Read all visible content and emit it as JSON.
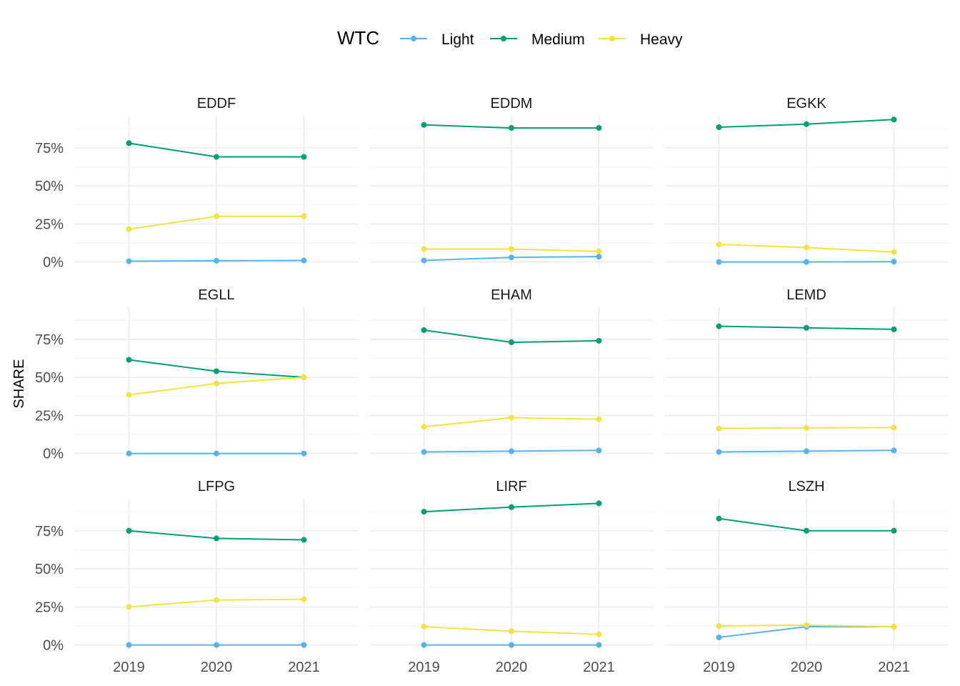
{
  "chart_data": {
    "type": "line",
    "layout": "facet-grid-3x3",
    "ylabel": "SHARE",
    "xlabel": "",
    "x": [
      "2019",
      "2020",
      "2021"
    ],
    "y_ticks": [
      "0%",
      "25%",
      "50%",
      "75%"
    ],
    "y_tick_values": [
      0,
      0.25,
      0.5,
      0.75
    ],
    "ylim": [
      -0.03,
      0.96
    ],
    "grid": true,
    "legend": {
      "title": "WTC",
      "placement": "top",
      "entries": [
        "Light",
        "Medium",
        "Heavy"
      ]
    },
    "colors": {
      "Light": "#56B4E9",
      "Medium": "#009E73",
      "Heavy": "#F0E442"
    },
    "panels": [
      {
        "title": "EDDF",
        "series": [
          {
            "name": "Light",
            "values": [
              0.005,
              0.008,
              0.01
            ]
          },
          {
            "name": "Medium",
            "values": [
              0.78,
              0.69,
              0.69
            ]
          },
          {
            "name": "Heavy",
            "values": [
              0.215,
              0.3,
              0.3
            ]
          }
        ]
      },
      {
        "title": "EDDM",
        "series": [
          {
            "name": "Light",
            "values": [
              0.01,
              0.03,
              0.035
            ]
          },
          {
            "name": "Medium",
            "values": [
              0.9,
              0.88,
              0.88
            ]
          },
          {
            "name": "Heavy",
            "values": [
              0.085,
              0.085,
              0.07
            ]
          }
        ]
      },
      {
        "title": "EGKK",
        "series": [
          {
            "name": "Light",
            "values": [
              0.0,
              0.0,
              0.002
            ]
          },
          {
            "name": "Medium",
            "values": [
              0.885,
              0.905,
              0.935
            ]
          },
          {
            "name": "Heavy",
            "values": [
              0.115,
              0.095,
              0.065
            ]
          }
        ]
      },
      {
        "title": "EGLL",
        "series": [
          {
            "name": "Light",
            "values": [
              0.0,
              0.0,
              0.0
            ]
          },
          {
            "name": "Medium",
            "values": [
              0.615,
              0.54,
              0.5
            ]
          },
          {
            "name": "Heavy",
            "values": [
              0.385,
              0.46,
              0.5
            ]
          }
        ]
      },
      {
        "title": "EHAM",
        "series": [
          {
            "name": "Light",
            "values": [
              0.01,
              0.015,
              0.02
            ]
          },
          {
            "name": "Medium",
            "values": [
              0.81,
              0.73,
              0.74
            ]
          },
          {
            "name": "Heavy",
            "values": [
              0.175,
              0.235,
              0.225
            ]
          }
        ]
      },
      {
        "title": "LEMD",
        "series": [
          {
            "name": "Light",
            "values": [
              0.01,
              0.015,
              0.02
            ]
          },
          {
            "name": "Medium",
            "values": [
              0.835,
              0.825,
              0.815
            ]
          },
          {
            "name": "Heavy",
            "values": [
              0.165,
              0.168,
              0.17
            ]
          }
        ]
      },
      {
        "title": "LFPG",
        "series": [
          {
            "name": "Light",
            "values": [
              0.0,
              0.0,
              0.0
            ]
          },
          {
            "name": "Medium",
            "values": [
              0.75,
              0.7,
              0.69
            ]
          },
          {
            "name": "Heavy",
            "values": [
              0.25,
              0.295,
              0.3
            ]
          }
        ]
      },
      {
        "title": "LIRF",
        "series": [
          {
            "name": "Light",
            "values": [
              0.0,
              0.0,
              0.0
            ]
          },
          {
            "name": "Medium",
            "values": [
              0.875,
              0.905,
              0.93
            ]
          },
          {
            "name": "Heavy",
            "values": [
              0.12,
              0.09,
              0.07
            ]
          }
        ]
      },
      {
        "title": "LSZH",
        "series": [
          {
            "name": "Light",
            "values": [
              0.05,
              0.12,
              0.12
            ]
          },
          {
            "name": "Medium",
            "values": [
              0.83,
              0.75,
              0.75
            ]
          },
          {
            "name": "Heavy",
            "values": [
              0.125,
              0.13,
              0.12
            ]
          }
        ]
      }
    ]
  }
}
